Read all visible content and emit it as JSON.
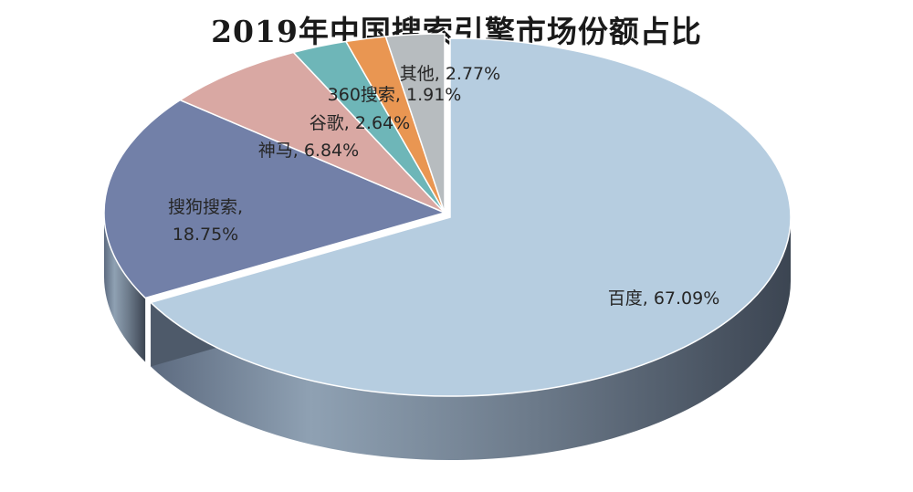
{
  "chart_data": {
    "type": "pie",
    "title": "2019年中国搜索引擎市场份额占比",
    "slices": [
      {
        "name": "百度",
        "value": 67.09,
        "label": "百度, 67.09%",
        "color": "#b6cde0"
      },
      {
        "name": "搜狗搜索",
        "value": 18.75,
        "label_lines": [
          "搜狗搜索,",
          "18.75%"
        ],
        "color": "#7280a8"
      },
      {
        "name": "神马",
        "value": 6.84,
        "label": "神马, 6.84%",
        "color": "#d9a8a3"
      },
      {
        "name": "谷歌",
        "value": 2.64,
        "label": "谷歌, 2.64%",
        "color": "#6eb6b8"
      },
      {
        "name": "360搜索",
        "value": 1.91,
        "label": "360搜索, 1.91%",
        "color": "#e99652"
      },
      {
        "name": "其他",
        "value": 2.77,
        "label": "其他, 2.77%",
        "color": "#b7bcbf"
      }
    ],
    "legend": "none",
    "style": "3d-exploded-pie"
  }
}
